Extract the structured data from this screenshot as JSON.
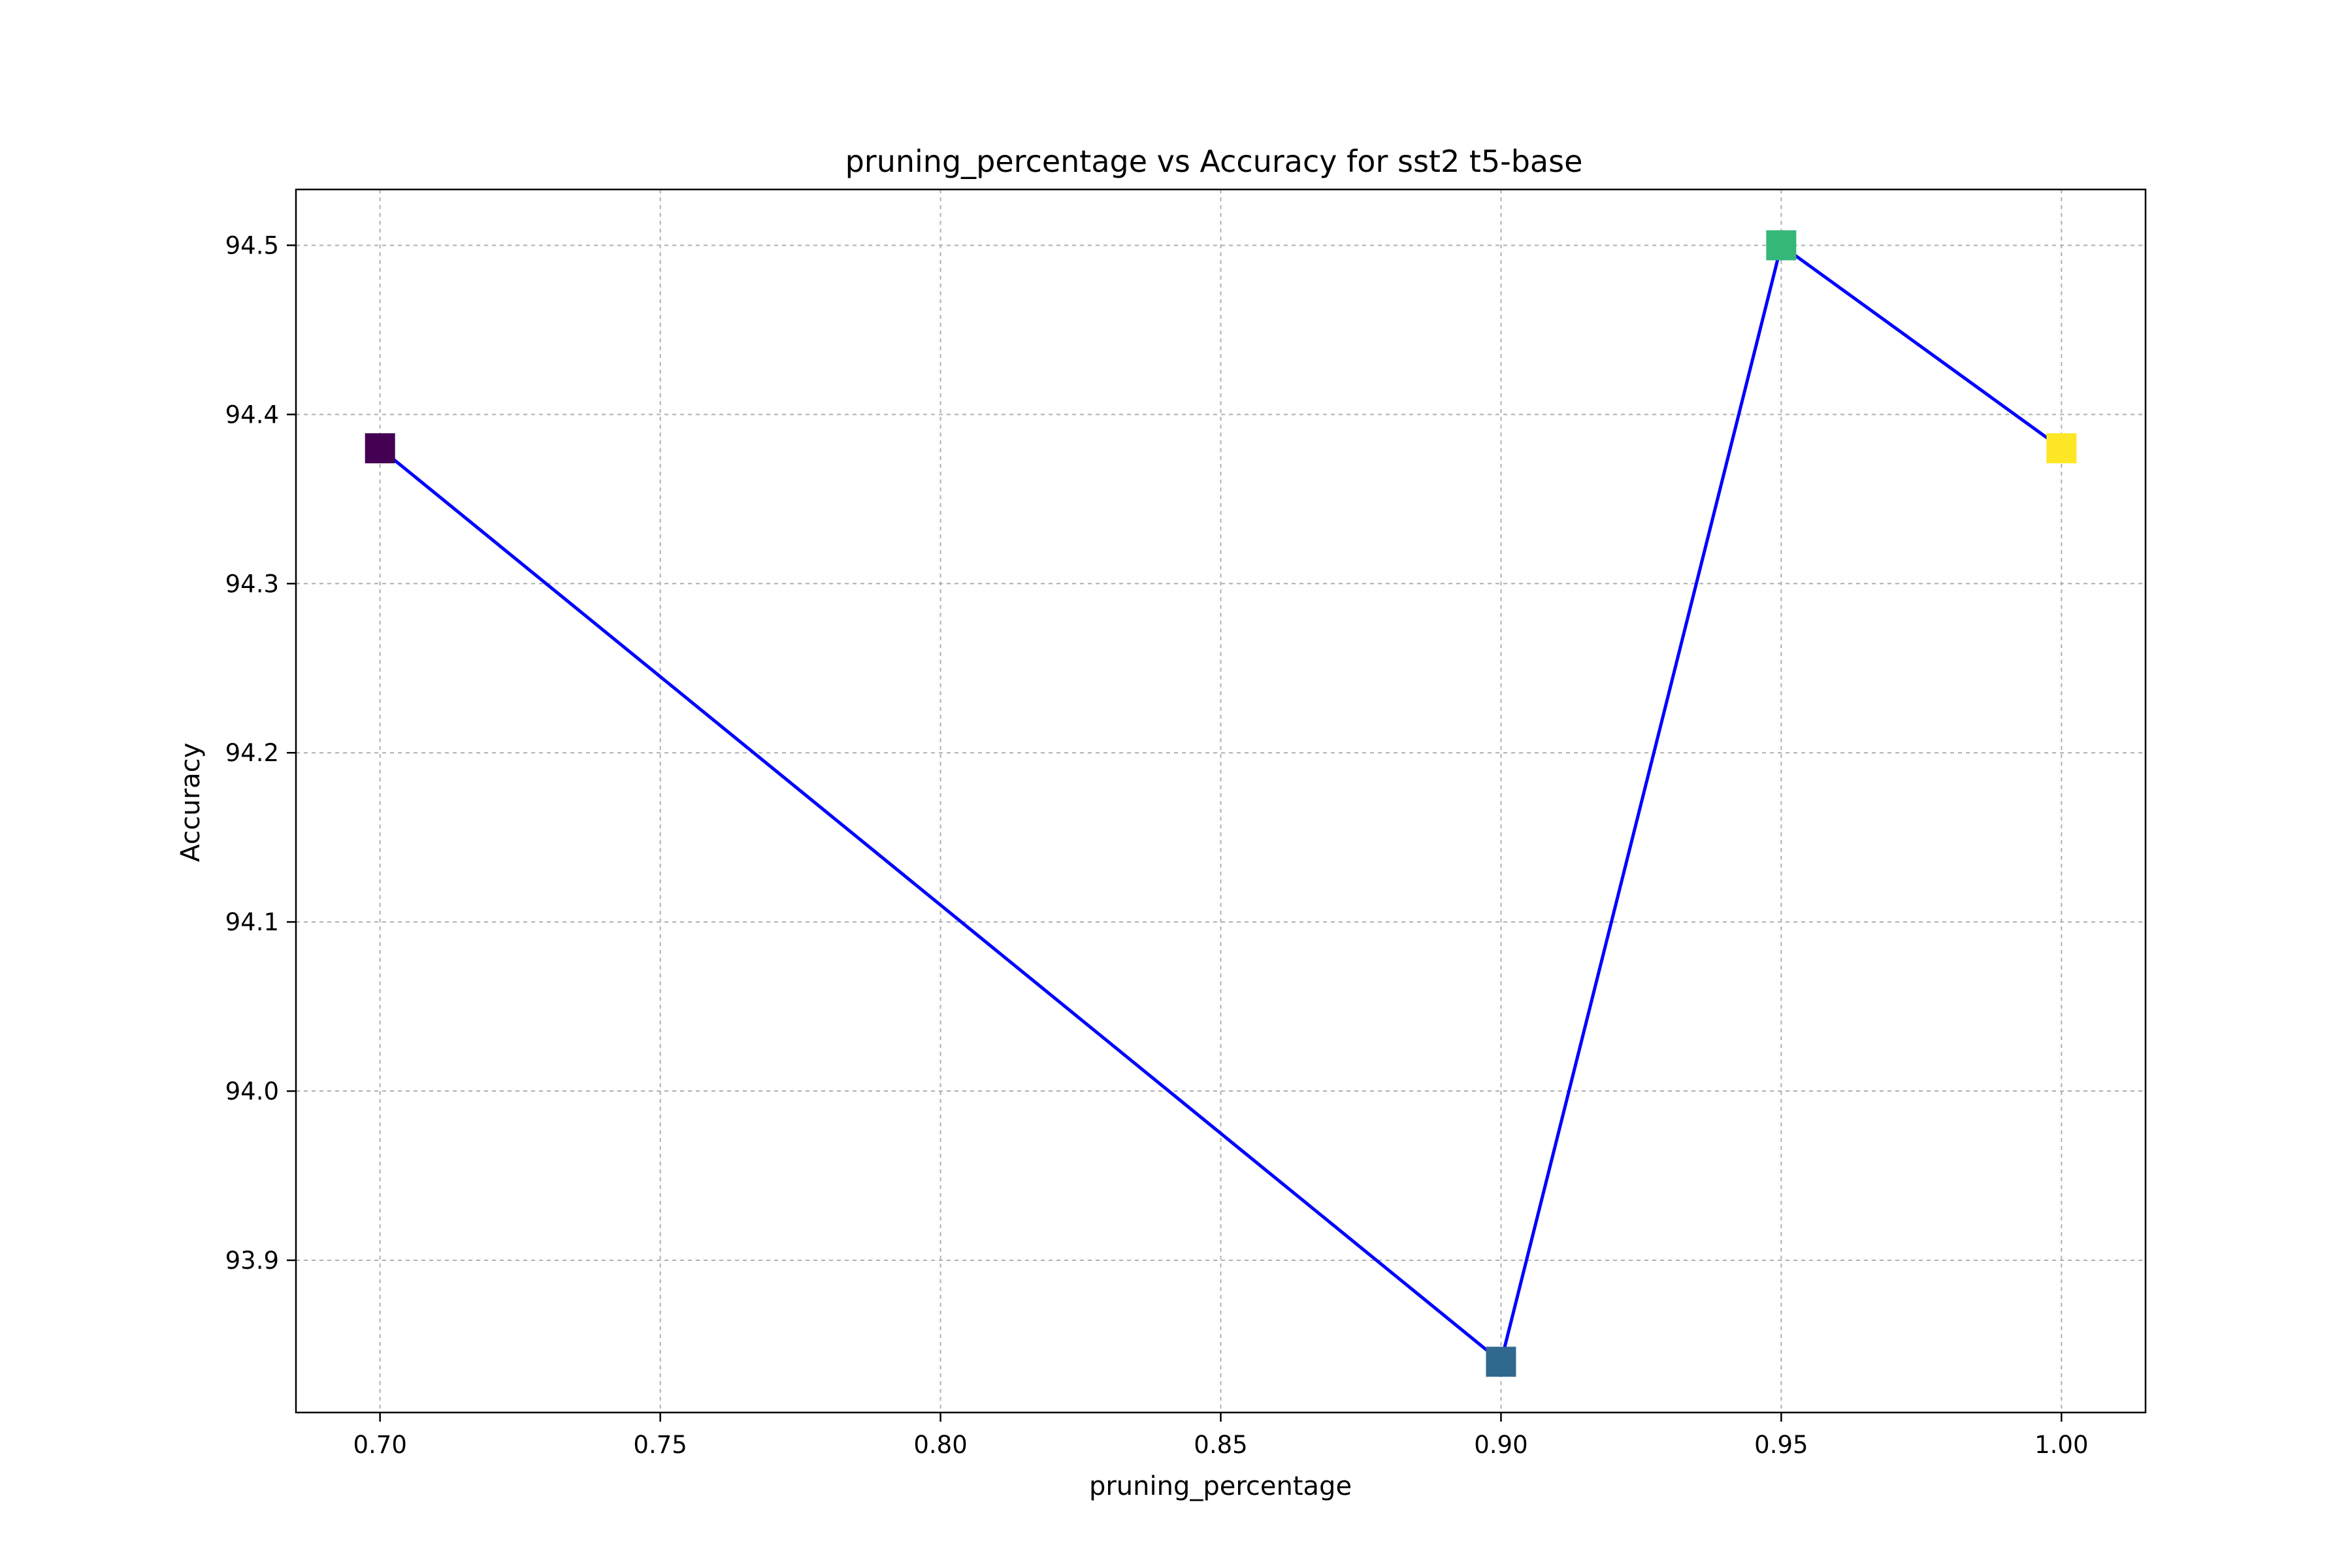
{
  "chart_data": {
    "type": "line",
    "title": "pruning_percentage vs Accuracy for sst2 t5-base",
    "xlabel": "pruning_percentage",
    "ylabel": "Accuracy",
    "xlim": [
      0.685,
      1.015
    ],
    "ylim": [
      93.81,
      94.533
    ],
    "xticks": [
      0.7,
      0.75,
      0.8,
      0.85,
      0.9,
      0.95,
      1.0
    ],
    "xtick_labels": [
      "0.70",
      "0.75",
      "0.80",
      "0.85",
      "0.90",
      "0.95",
      "1.00"
    ],
    "yticks": [
      93.9,
      94.0,
      94.1,
      94.2,
      94.3,
      94.4,
      94.5
    ],
    "ytick_labels": [
      "93.9",
      "94.0",
      "94.1",
      "94.2",
      "94.3",
      "94.4",
      "94.5"
    ],
    "grid": true,
    "line_color": "#0000ff",
    "marker": "square",
    "series": [
      {
        "x": [
          0.7,
          0.9,
          0.95,
          1.0
        ],
        "y": [
          94.38,
          93.84,
          94.5,
          94.38
        ],
        "point_colors": [
          "#440154",
          "#31688e",
          "#35b779",
          "#fde725"
        ]
      }
    ]
  }
}
